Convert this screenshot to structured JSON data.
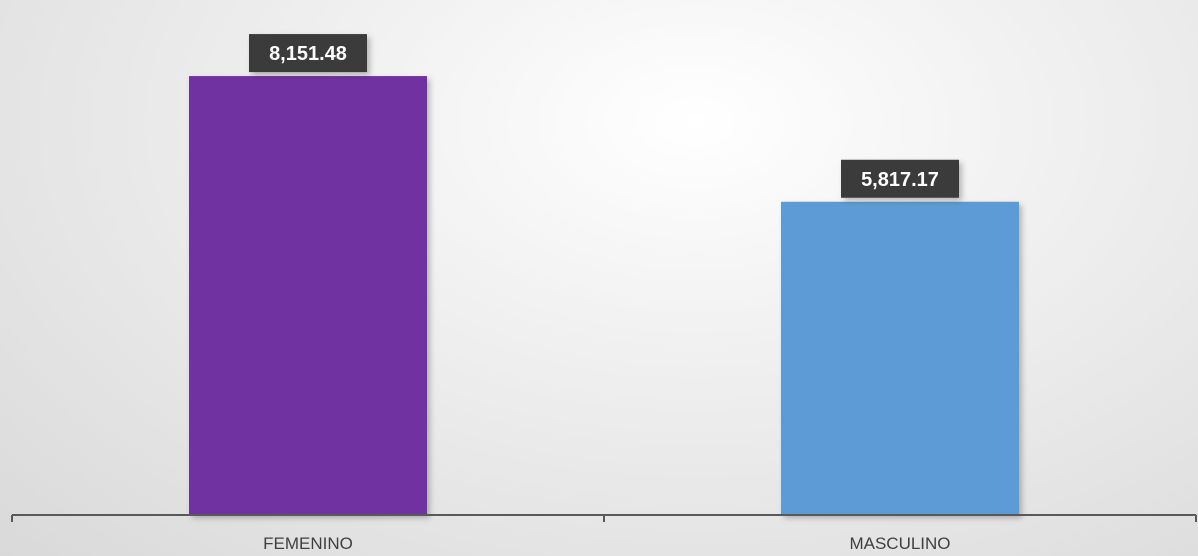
{
  "chart_data": {
    "type": "bar",
    "categories": [
      "FEMENINO",
      "MASCULINO"
    ],
    "values": [
      8151.48,
      5817.17
    ],
    "value_labels": [
      "8,151.48",
      "5,817.17"
    ],
    "colors": [
      "#7030a0",
      "#5b9bd5"
    ],
    "label_box_color": "#3a3a3a",
    "axis_color": "#595959",
    "ylim": [
      0,
      9100
    ],
    "grid": false,
    "legend": "none",
    "title": "",
    "xlabel": "",
    "ylabel": ""
  }
}
